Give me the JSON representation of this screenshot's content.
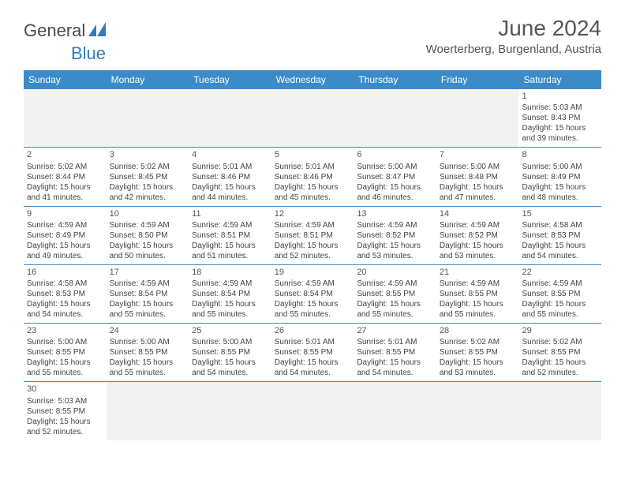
{
  "logo": {
    "part1": "General",
    "part2": "Blue"
  },
  "title": "June 2024",
  "location": "Woerterberg, Burgenland, Austria",
  "colors": {
    "header_bg": "#3b8bc9",
    "header_text": "#ffffff",
    "border": "#3b8bc9",
    "text": "#444444",
    "empty_bg": "#f2f2f2",
    "logo_blue": "#2e7bc0"
  },
  "weekdays": [
    "Sunday",
    "Monday",
    "Tuesday",
    "Wednesday",
    "Thursday",
    "Friday",
    "Saturday"
  ],
  "weeks": [
    [
      null,
      null,
      null,
      null,
      null,
      null,
      {
        "d": "1",
        "sunrise": "5:03 AM",
        "sunset": "8:43 PM",
        "daylight": "15 hours and 39 minutes."
      }
    ],
    [
      {
        "d": "2",
        "sunrise": "5:02 AM",
        "sunset": "8:44 PM",
        "daylight": "15 hours and 41 minutes."
      },
      {
        "d": "3",
        "sunrise": "5:02 AM",
        "sunset": "8:45 PM",
        "daylight": "15 hours and 42 minutes."
      },
      {
        "d": "4",
        "sunrise": "5:01 AM",
        "sunset": "8:46 PM",
        "daylight": "15 hours and 44 minutes."
      },
      {
        "d": "5",
        "sunrise": "5:01 AM",
        "sunset": "8:46 PM",
        "daylight": "15 hours and 45 minutes."
      },
      {
        "d": "6",
        "sunrise": "5:00 AM",
        "sunset": "8:47 PM",
        "daylight": "15 hours and 46 minutes."
      },
      {
        "d": "7",
        "sunrise": "5:00 AM",
        "sunset": "8:48 PM",
        "daylight": "15 hours and 47 minutes."
      },
      {
        "d": "8",
        "sunrise": "5:00 AM",
        "sunset": "8:49 PM",
        "daylight": "15 hours and 48 minutes."
      }
    ],
    [
      {
        "d": "9",
        "sunrise": "4:59 AM",
        "sunset": "8:49 PM",
        "daylight": "15 hours and 49 minutes."
      },
      {
        "d": "10",
        "sunrise": "4:59 AM",
        "sunset": "8:50 PM",
        "daylight": "15 hours and 50 minutes."
      },
      {
        "d": "11",
        "sunrise": "4:59 AM",
        "sunset": "8:51 PM",
        "daylight": "15 hours and 51 minutes."
      },
      {
        "d": "12",
        "sunrise": "4:59 AM",
        "sunset": "8:51 PM",
        "daylight": "15 hours and 52 minutes."
      },
      {
        "d": "13",
        "sunrise": "4:59 AM",
        "sunset": "8:52 PM",
        "daylight": "15 hours and 53 minutes."
      },
      {
        "d": "14",
        "sunrise": "4:59 AM",
        "sunset": "8:52 PM",
        "daylight": "15 hours and 53 minutes."
      },
      {
        "d": "15",
        "sunrise": "4:58 AM",
        "sunset": "8:53 PM",
        "daylight": "15 hours and 54 minutes."
      }
    ],
    [
      {
        "d": "16",
        "sunrise": "4:58 AM",
        "sunset": "8:53 PM",
        "daylight": "15 hours and 54 minutes."
      },
      {
        "d": "17",
        "sunrise": "4:59 AM",
        "sunset": "8:54 PM",
        "daylight": "15 hours and 55 minutes."
      },
      {
        "d": "18",
        "sunrise": "4:59 AM",
        "sunset": "8:54 PM",
        "daylight": "15 hours and 55 minutes."
      },
      {
        "d": "19",
        "sunrise": "4:59 AM",
        "sunset": "8:54 PM",
        "daylight": "15 hours and 55 minutes."
      },
      {
        "d": "20",
        "sunrise": "4:59 AM",
        "sunset": "8:55 PM",
        "daylight": "15 hours and 55 minutes."
      },
      {
        "d": "21",
        "sunrise": "4:59 AM",
        "sunset": "8:55 PM",
        "daylight": "15 hours and 55 minutes."
      },
      {
        "d": "22",
        "sunrise": "4:59 AM",
        "sunset": "8:55 PM",
        "daylight": "15 hours and 55 minutes."
      }
    ],
    [
      {
        "d": "23",
        "sunrise": "5:00 AM",
        "sunset": "8:55 PM",
        "daylight": "15 hours and 55 minutes."
      },
      {
        "d": "24",
        "sunrise": "5:00 AM",
        "sunset": "8:55 PM",
        "daylight": "15 hours and 55 minutes."
      },
      {
        "d": "25",
        "sunrise": "5:00 AM",
        "sunset": "8:55 PM",
        "daylight": "15 hours and 54 minutes."
      },
      {
        "d": "26",
        "sunrise": "5:01 AM",
        "sunset": "8:55 PM",
        "daylight": "15 hours and 54 minutes."
      },
      {
        "d": "27",
        "sunrise": "5:01 AM",
        "sunset": "8:55 PM",
        "daylight": "15 hours and 54 minutes."
      },
      {
        "d": "28",
        "sunrise": "5:02 AM",
        "sunset": "8:55 PM",
        "daylight": "15 hours and 53 minutes."
      },
      {
        "d": "29",
        "sunrise": "5:02 AM",
        "sunset": "8:55 PM",
        "daylight": "15 hours and 52 minutes."
      }
    ],
    [
      {
        "d": "30",
        "sunrise": "5:03 AM",
        "sunset": "8:55 PM",
        "daylight": "15 hours and 52 minutes."
      },
      null,
      null,
      null,
      null,
      null,
      null
    ]
  ],
  "labels": {
    "sunrise_prefix": "Sunrise: ",
    "sunset_prefix": "Sunset: ",
    "daylight_prefix": "Daylight: "
  }
}
